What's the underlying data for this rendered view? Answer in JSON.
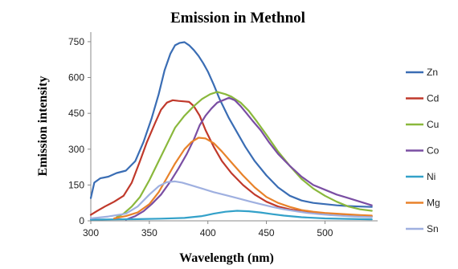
{
  "chart_data": {
    "type": "line",
    "title": "Emission in Methnol",
    "xlabel": "Wavelength (nm)",
    "ylabel": "Emission intensity",
    "xlim": [
      300,
      545
    ],
    "ylim": [
      0,
      790
    ],
    "xticks": [
      300,
      350,
      400,
      450,
      500
    ],
    "yticks": [
      0,
      150,
      300,
      450,
      600,
      750
    ],
    "grid": false,
    "legend_position": "right",
    "series": [
      {
        "name": "Zn",
        "color": "#3a6db4",
        "x": [
          300,
          303,
          308,
          315,
          322,
          330,
          338,
          345,
          352,
          358,
          363,
          368,
          372,
          376,
          380,
          384,
          388,
          392,
          396,
          400,
          405,
          410,
          418,
          425,
          432,
          440,
          450,
          460,
          470,
          480,
          490,
          500,
          510,
          520,
          530,
          540
        ],
        "y": [
          95,
          160,
          178,
          185,
          200,
          210,
          250,
          330,
          430,
          530,
          630,
          700,
          735,
          745,
          748,
          735,
          715,
          690,
          660,
          625,
          570,
          510,
          430,
          370,
          310,
          250,
          190,
          140,
          105,
          85,
          75,
          70,
          65,
          62,
          60,
          58
        ]
      },
      {
        "name": "Cd",
        "color": "#c0392b",
        "x": [
          300,
          305,
          312,
          320,
          328,
          335,
          342,
          348,
          355,
          360,
          365,
          370,
          375,
          380,
          384,
          388,
          393,
          398,
          405,
          412,
          420,
          430,
          440,
          450,
          460,
          470,
          480,
          490,
          500,
          510,
          520,
          530,
          540
        ],
        "y": [
          25,
          40,
          60,
          80,
          105,
          160,
          250,
          330,
          410,
          465,
          495,
          505,
          502,
          500,
          498,
          480,
          440,
          380,
          310,
          250,
          200,
          150,
          110,
          80,
          60,
          48,
          40,
          35,
          30,
          26,
          22,
          20,
          18
        ]
      },
      {
        "name": "Cu",
        "color": "#8ab83c",
        "x": [
          322,
          328,
          335,
          342,
          350,
          358,
          365,
          372,
          380,
          388,
          395,
          402,
          408,
          415,
          420,
          428,
          435,
          442,
          450,
          460,
          470,
          480,
          490,
          500,
          510,
          520,
          530,
          540
        ],
        "y": [
          15,
          30,
          60,
          100,
          170,
          250,
          320,
          390,
          440,
          480,
          510,
          530,
          540,
          530,
          520,
          495,
          460,
          415,
          360,
          290,
          230,
          175,
          135,
          105,
          80,
          60,
          48,
          42
        ]
      },
      {
        "name": "Co",
        "color": "#7a4ea3",
        "x": [
          330,
          338,
          345,
          352,
          360,
          368,
          375,
          382,
          388,
          393,
          398,
          403,
          408,
          413,
          418,
          423,
          428,
          433,
          438,
          445,
          452,
          460,
          470,
          480,
          490,
          500,
          510,
          520,
          530,
          540
        ],
        "y": [
          5,
          20,
          40,
          70,
          110,
          165,
          220,
          280,
          340,
          400,
          440,
          470,
          495,
          505,
          515,
          505,
          480,
          450,
          420,
          380,
          330,
          280,
          230,
          185,
          150,
          130,
          110,
          95,
          80,
          65
        ]
      },
      {
        "name": "Ni",
        "color": "#33a1c9",
        "x": [
          300,
          320,
          340,
          360,
          380,
          395,
          405,
          415,
          425,
          435,
          445,
          455,
          465,
          480,
          500,
          520,
          540
        ],
        "y": [
          5,
          6,
          7,
          9,
          12,
          20,
          30,
          38,
          42,
          40,
          35,
          28,
          22,
          15,
          10,
          8,
          6
        ]
      },
      {
        "name": "Mg",
        "color": "#e8822a",
        "x": [
          320,
          330,
          340,
          350,
          358,
          365,
          372,
          380,
          386,
          392,
          398,
          405,
          412,
          420,
          430,
          440,
          450,
          460,
          470,
          480,
          490,
          500,
          510,
          520,
          530,
          540
        ],
        "y": [
          10,
          20,
          35,
          70,
          120,
          180,
          240,
          300,
          330,
          348,
          345,
          325,
          290,
          245,
          190,
          140,
          100,
          75,
          58,
          45,
          38,
          33,
          30,
          27,
          24,
          22
        ]
      },
      {
        "name": "Sn",
        "color": "#9fb0e0",
        "x": [
          300,
          315,
          330,
          340,
          350,
          358,
          365,
          372,
          378,
          385,
          395,
          405,
          415,
          425,
          435,
          445,
          455,
          465,
          475,
          485,
          495,
          505,
          515,
          525,
          540
        ],
        "y": [
          10,
          18,
          30,
          60,
          110,
          145,
          162,
          165,
          160,
          150,
          135,
          120,
          108,
          95,
          82,
          70,
          58,
          48,
          40,
          33,
          28,
          24,
          21,
          18,
          15
        ]
      }
    ]
  }
}
